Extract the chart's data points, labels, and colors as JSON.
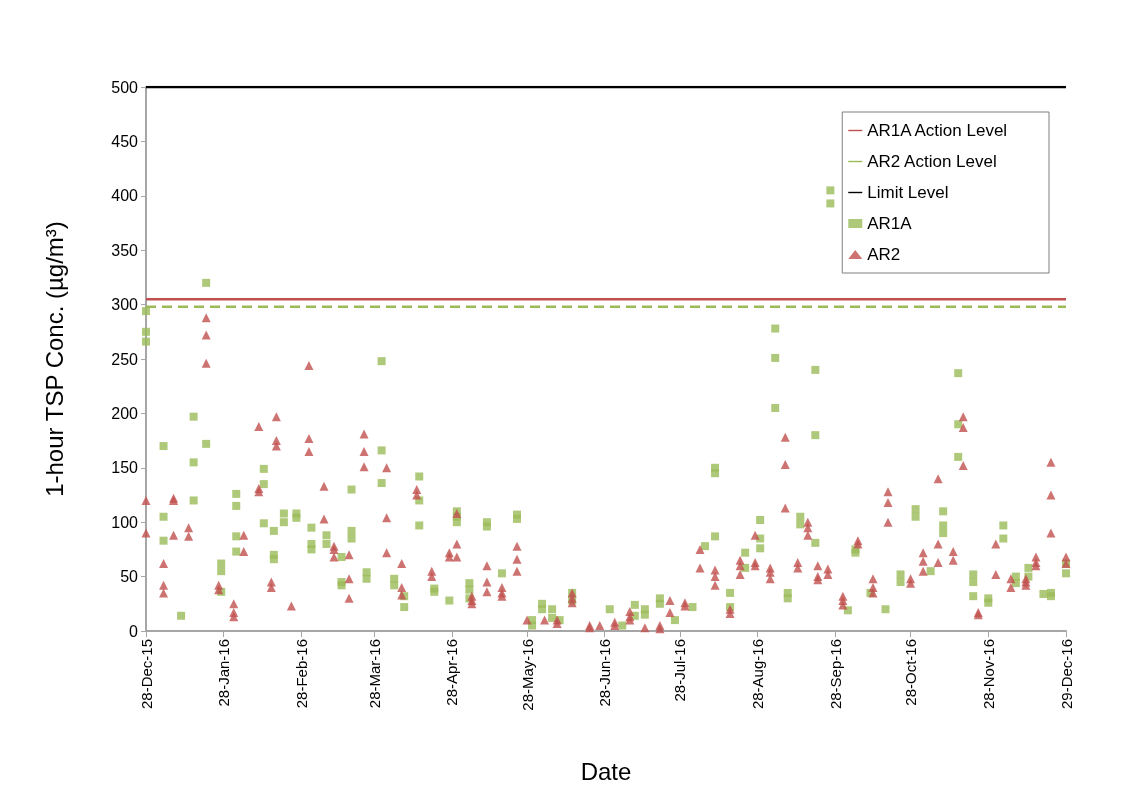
{
  "chart_data": {
    "type": "scatter",
    "xlabel": "Date",
    "ylabel": "1-hour TSP Conc. (µg/m³)",
    "xlim": [
      "2015-12-28",
      "2016-12-29"
    ],
    "xticks": [
      {
        "value": "2015-12-28",
        "label": "28-Dec-15"
      },
      {
        "value": "2016-01-28",
        "label": "28-Jan-16"
      },
      {
        "value": "2016-02-28",
        "label": "28-Feb-16"
      },
      {
        "value": "2016-03-28",
        "label": "28-Mar-16"
      },
      {
        "value": "2016-04-28",
        "label": "28-Apr-16"
      },
      {
        "value": "2016-05-28",
        "label": "28-May-16"
      },
      {
        "value": "2016-06-28",
        "label": "28-Jun-16"
      },
      {
        "value": "2016-07-28",
        "label": "28-Jul-16"
      },
      {
        "value": "2016-08-28",
        "label": "28-Aug-16"
      },
      {
        "value": "2016-09-28",
        "label": "28-Sep-16"
      },
      {
        "value": "2016-10-28",
        "label": "28-Oct-16"
      },
      {
        "value": "2016-11-28",
        "label": "28-Nov-16"
      },
      {
        "value": "2016-12-29",
        "label": "29-Dec-16"
      }
    ],
    "ylim": [
      0,
      500
    ],
    "yticks": [
      0,
      50,
      100,
      150,
      200,
      250,
      300,
      350,
      400,
      450,
      500
    ],
    "grid": false,
    "legend": "top right",
    "ref_lines": [
      {
        "axis": "y",
        "value": 305,
        "label": "AR1A Action Level",
        "color": "#c0504d",
        "line_style": "solid"
      },
      {
        "axis": "y",
        "value": 298,
        "label": "AR2 Action Level",
        "color": "#9bbb59",
        "line_style": "dashed"
      },
      {
        "axis": "y",
        "value": 500,
        "label": "Limit Level",
        "color": "#000000",
        "line_style": "solid"
      }
    ],
    "series": [
      {
        "name": "AR1A",
        "color": "#9bbb59",
        "marker": "square",
        "x": [
          "2015-12-28",
          "2015-12-28",
          "2015-12-28",
          "2016-01-04",
          "2016-01-04",
          "2016-01-04",
          "2016-01-11",
          "2016-01-16",
          "2016-01-16",
          "2016-01-16",
          "2016-01-21",
          "2016-01-21",
          "2016-01-27",
          "2016-01-27",
          "2016-01-27",
          "2016-02-02",
          "2016-02-02",
          "2016-02-02",
          "2016-02-02",
          "2016-02-13",
          "2016-02-13",
          "2016-02-13",
          "2016-02-17",
          "2016-02-17",
          "2016-02-17",
          "2016-02-21",
          "2016-02-21",
          "2016-02-26",
          "2016-02-26",
          "2016-03-03",
          "2016-03-03",
          "2016-03-03",
          "2016-03-09",
          "2016-03-09",
          "2016-03-15",
          "2016-03-15",
          "2016-03-15",
          "2016-03-19",
          "2016-03-19",
          "2016-03-19",
          "2016-03-25",
          "2016-03-25",
          "2016-03-31",
          "2016-03-31",
          "2016-03-31",
          "2016-04-05",
          "2016-04-05",
          "2016-04-09",
          "2016-04-09",
          "2016-04-15",
          "2016-04-15",
          "2016-04-15",
          "2016-04-21",
          "2016-04-21",
          "2016-04-27",
          "2016-04-30",
          "2016-04-30",
          "2016-04-30",
          "2016-05-05",
          "2016-05-05",
          "2016-05-05",
          "2016-05-12",
          "2016-05-12",
          "2016-05-18",
          "2016-05-24",
          "2016-05-24",
          "2016-05-30",
          "2016-05-30",
          "2016-06-03",
          "2016-06-03",
          "2016-06-07",
          "2016-06-07",
          "2016-06-10",
          "2016-06-15",
          "2016-06-15",
          "2016-06-30",
          "2016-07-05",
          "2016-07-10",
          "2016-07-10",
          "2016-07-14",
          "2016-07-14",
          "2016-07-20",
          "2016-07-20",
          "2016-07-26",
          "2016-08-02",
          "2016-08-07",
          "2016-08-11",
          "2016-08-11",
          "2016-08-11",
          "2016-08-17",
          "2016-08-17",
          "2016-08-23",
          "2016-08-23",
          "2016-08-29",
          "2016-08-29",
          "2016-08-29",
          "2016-09-04",
          "2016-09-04",
          "2016-09-04",
          "2016-09-09",
          "2016-09-09",
          "2016-09-14",
          "2016-09-14",
          "2016-09-20",
          "2016-09-20",
          "2016-09-20",
          "2016-09-26",
          "2016-09-26",
          "2016-10-03",
          "2016-10-06",
          "2016-10-06",
          "2016-10-12",
          "2016-10-18",
          "2016-10-24",
          "2016-10-24",
          "2016-10-30",
          "2016-10-30",
          "2016-11-05",
          "2016-11-10",
          "2016-11-10",
          "2016-11-10",
          "2016-11-16",
          "2016-11-16",
          "2016-11-16",
          "2016-11-22",
          "2016-11-22",
          "2016-11-22",
          "2016-11-28",
          "2016-11-28",
          "2016-12-04",
          "2016-12-04",
          "2016-12-09",
          "2016-12-09",
          "2016-12-14",
          "2016-12-14",
          "2016-12-20",
          "2016-12-23",
          "2016-12-23",
          "2016-12-29",
          "2016-12-29"
        ],
        "values": [
          294,
          275,
          266,
          170,
          105,
          83,
          14,
          197,
          155,
          120,
          320,
          172,
          62,
          55,
          36,
          126,
          115,
          87,
          73,
          149,
          135,
          99,
          92,
          70,
          66,
          108,
          100,
          108,
          104,
          95,
          80,
          75,
          88,
          80,
          68,
          45,
          42,
          130,
          92,
          85,
          54,
          48,
          248,
          166,
          136,
          48,
          42,
          32,
          22,
          142,
          120,
          97,
          39,
          36,
          28,
          110,
          105,
          100,
          44,
          38,
          30,
          100,
          96,
          53,
          107,
          103,
          10,
          5,
          25,
          20,
          20,
          12,
          10,
          35,
          28,
          20,
          5,
          24,
          14,
          20,
          15,
          30,
          25,
          10,
          22,
          78,
          150,
          145,
          87,
          35,
          22,
          72,
          58,
          102,
          85,
          76,
          278,
          251,
          205,
          35,
          30,
          105,
          98,
          240,
          180,
          81,
          405,
          393,
          19,
          75,
          72,
          35,
          20,
          52,
          45,
          112,
          105,
          55,
          110,
          97,
          90,
          237,
          190,
          160,
          52,
          45,
          32,
          30,
          26,
          97,
          85,
          50,
          44,
          58,
          50,
          34,
          35,
          32,
          62,
          53
        ]
      },
      {
        "name": "AR2",
        "color": "#c0504d",
        "marker": "triangle",
        "x": [
          "2015-12-28",
          "2015-12-28",
          "2016-01-04",
          "2016-01-04",
          "2016-01-04",
          "2016-01-08",
          "2016-01-08",
          "2016-01-08",
          "2016-01-14",
          "2016-01-14",
          "2016-01-21",
          "2016-01-21",
          "2016-01-21",
          "2016-01-26",
          "2016-01-26",
          "2016-02-01",
          "2016-02-01",
          "2016-02-01",
          "2016-02-05",
          "2016-02-05",
          "2016-02-11",
          "2016-02-11",
          "2016-02-11",
          "2016-02-16",
          "2016-02-16",
          "2016-02-18",
          "2016-02-18",
          "2016-02-18",
          "2016-02-24",
          "2016-03-02",
          "2016-03-02",
          "2016-03-02",
          "2016-03-08",
          "2016-03-08",
          "2016-03-12",
          "2016-03-12",
          "2016-03-12",
          "2016-03-18",
          "2016-03-18",
          "2016-03-18",
          "2016-03-24",
          "2016-03-24",
          "2016-03-24",
          "2016-04-02",
          "2016-04-02",
          "2016-04-02",
          "2016-04-08",
          "2016-04-08",
          "2016-04-08",
          "2016-04-14",
          "2016-04-14",
          "2016-04-20",
          "2016-04-20",
          "2016-04-27",
          "2016-04-27",
          "2016-04-30",
          "2016-04-30",
          "2016-04-30",
          "2016-05-06",
          "2016-05-06",
          "2016-05-06",
          "2016-05-12",
          "2016-05-12",
          "2016-05-12",
          "2016-05-18",
          "2016-05-18",
          "2016-05-18",
          "2016-05-24",
          "2016-05-24",
          "2016-05-24",
          "2016-05-28",
          "2016-06-04",
          "2016-06-09",
          "2016-06-09",
          "2016-06-15",
          "2016-06-15",
          "2016-06-15",
          "2016-06-22",
          "2016-06-22",
          "2016-06-26",
          "2016-07-02",
          "2016-07-02",
          "2016-07-08",
          "2016-07-08",
          "2016-07-08",
          "2016-07-14",
          "2016-07-20",
          "2016-07-20",
          "2016-07-24",
          "2016-07-24",
          "2016-07-30",
          "2016-07-30",
          "2016-08-05",
          "2016-08-05",
          "2016-08-11",
          "2016-08-11",
          "2016-08-11",
          "2016-08-17",
          "2016-08-17",
          "2016-08-21",
          "2016-08-21",
          "2016-08-21",
          "2016-08-27",
          "2016-08-27",
          "2016-08-27",
          "2016-09-02",
          "2016-09-02",
          "2016-09-02",
          "2016-09-08",
          "2016-09-08",
          "2016-09-08",
          "2016-09-13",
          "2016-09-13",
          "2016-09-17",
          "2016-09-17",
          "2016-09-17",
          "2016-09-21",
          "2016-09-21",
          "2016-09-21",
          "2016-09-25",
          "2016-09-25",
          "2016-10-01",
          "2016-10-01",
          "2016-10-01",
          "2016-10-07",
          "2016-10-07",
          "2016-10-13",
          "2016-10-13",
          "2016-10-13",
          "2016-10-19",
          "2016-10-19",
          "2016-10-19",
          "2016-10-28",
          "2016-10-28",
          "2016-11-02",
          "2016-11-02",
          "2016-11-02",
          "2016-11-08",
          "2016-11-08",
          "2016-11-08",
          "2016-11-14",
          "2016-11-14",
          "2016-11-18",
          "2016-11-18",
          "2016-11-18",
          "2016-11-24",
          "2016-11-24",
          "2016-12-01",
          "2016-12-01",
          "2016-12-07",
          "2016-12-07",
          "2016-12-13",
          "2016-12-13",
          "2016-12-13",
          "2016-12-17",
          "2016-12-17",
          "2016-12-17",
          "2016-12-23",
          "2016-12-23",
          "2016-12-23",
          "2016-12-29",
          "2016-12-29"
        ],
        "values": [
          120,
          90,
          62,
          42,
          35,
          122,
          120,
          88,
          95,
          87,
          288,
          272,
          246,
          42,
          38,
          25,
          17,
          13,
          88,
          73,
          188,
          131,
          128,
          45,
          40,
          197,
          175,
          170,
          23,
          244,
          177,
          165,
          133,
          103,
          78,
          75,
          68,
          70,
          48,
          30,
          181,
          165,
          151,
          150,
          104,
          72,
          62,
          40,
          33,
          130,
          125,
          55,
          50,
          72,
          68,
          108,
          80,
          68,
          32,
          28,
          25,
          60,
          45,
          36,
          40,
          35,
          32,
          78,
          66,
          55,
          10,
          10,
          10,
          7,
          35,
          30,
          26,
          5,
          3,
          5,
          8,
          5,
          18,
          13,
          10,
          3,
          5,
          2,
          28,
          17,
          26,
          23,
          75,
          58,
          56,
          50,
          42,
          20,
          16,
          65,
          60,
          52,
          88,
          63,
          60,
          58,
          54,
          48,
          178,
          153,
          113,
          63,
          58,
          100,
          95,
          88,
          60,
          50,
          47,
          57,
          52,
          32,
          28,
          24,
          83,
          80,
          48,
          40,
          35,
          128,
          118,
          100,
          48,
          44,
          72,
          64,
          55,
          140,
          80,
          63,
          73,
          65,
          197,
          187,
          152,
          17,
          15,
          80,
          52,
          48,
          40,
          48,
          45,
          42,
          68,
          63,
          60,
          155,
          125,
          90,
          68,
          62
        ]
      }
    ]
  }
}
